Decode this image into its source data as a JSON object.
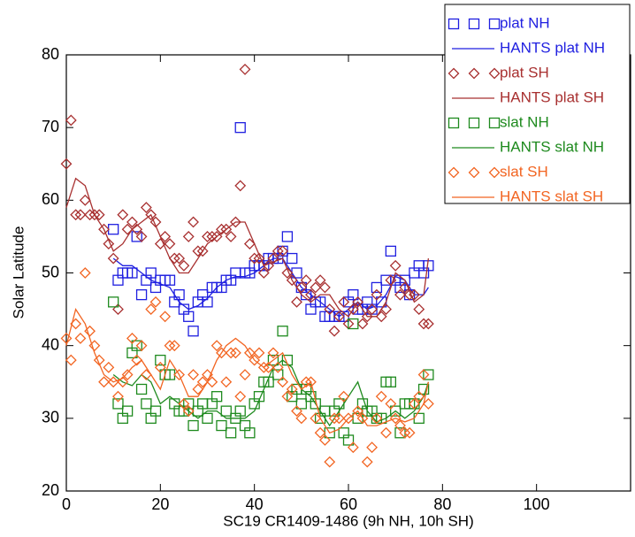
{
  "chart_data": {
    "type": "scatter",
    "xlabel": "SC19 CR1409-1486 (9h NH, 10h SH)",
    "ylabel": "Solar Latitude",
    "xlim": [
      0,
      120
    ],
    "xticks": [
      0,
      20,
      40,
      60,
      80,
      100
    ],
    "ylim": [
      20,
      80
    ],
    "yticks": [
      20,
      30,
      40,
      50,
      60,
      70,
      80
    ],
    "legend": "upper right",
    "series": [
      {
        "name": "plat NH",
        "color": "#1f1fe0",
        "marker": "square",
        "x": [
          10,
          11,
          12,
          13,
          14,
          15,
          16,
          17,
          18,
          19,
          20,
          21,
          22,
          23,
          24,
          25,
          26,
          27,
          28,
          29,
          30,
          31,
          32,
          33,
          34,
          35,
          36,
          37,
          38,
          39,
          40,
          41,
          42,
          43,
          44,
          45,
          46,
          47,
          48,
          49,
          50,
          51,
          52,
          53,
          54,
          55,
          56,
          57,
          58,
          59,
          60,
          61,
          62,
          63,
          64,
          65,
          66,
          67,
          68,
          69,
          70,
          71,
          72,
          73,
          74,
          75,
          76,
          77
        ],
        "values": [
          56,
          49,
          50,
          50,
          50,
          55,
          47,
          49,
          50,
          48,
          49,
          49,
          49,
          46,
          47,
          45,
          44,
          42,
          46,
          47,
          46,
          48,
          48,
          48,
          49,
          49,
          50,
          70,
          50,
          50,
          51,
          51,
          51,
          52,
          52,
          52,
          53,
          55,
          52,
          50,
          48,
          47,
          45,
          46,
          46,
          44,
          44,
          44,
          44,
          44,
          46,
          47,
          45,
          45,
          46,
          45,
          48,
          46,
          49,
          53,
          49,
          48,
          49,
          47,
          50,
          51,
          50,
          51
        ]
      },
      {
        "name": "HANTS plat NH",
        "color": "#1f1fe0",
        "marker": "line",
        "x": [
          10,
          12,
          14,
          16,
          18,
          20,
          22,
          24,
          26,
          28,
          30,
          32,
          34,
          36,
          38,
          40,
          42,
          44,
          46,
          48,
          50,
          52,
          54,
          56,
          58,
          60,
          62,
          64,
          66,
          68,
          70,
          72,
          74,
          76,
          77
        ],
        "values": [
          52,
          51,
          51,
          50,
          49,
          48.5,
          48,
          46,
          45,
          45.5,
          46.5,
          48,
          49,
          49.5,
          49.5,
          50,
          51,
          52,
          52,
          50,
          48,
          47,
          46,
          45,
          44,
          45,
          46,
          45,
          45.5,
          47,
          49.5,
          49,
          47,
          47,
          48
        ]
      },
      {
        "name": "plat SH",
        "color": "#a83030",
        "marker": "diamond",
        "x": [
          0,
          1,
          2,
          3,
          4,
          5,
          6,
          7,
          8,
          9,
          10,
          11,
          12,
          13,
          14,
          15,
          16,
          17,
          18,
          19,
          20,
          21,
          22,
          23,
          24,
          25,
          26,
          27,
          28,
          29,
          30,
          31,
          32,
          33,
          34,
          35,
          36,
          37,
          38,
          39,
          40,
          41,
          42,
          43,
          44,
          45,
          46,
          47,
          48,
          49,
          50,
          51,
          52,
          53,
          54,
          55,
          56,
          57,
          58,
          59,
          60,
          61,
          62,
          63,
          64,
          65,
          66,
          67,
          68,
          69,
          70,
          71,
          72,
          73,
          74,
          75,
          76,
          77
        ],
        "values": [
          65,
          71,
          58,
          58,
          60,
          58,
          58,
          58,
          56,
          54,
          52,
          45,
          58,
          56,
          57,
          56,
          55,
          59,
          58,
          57,
          54,
          55,
          54,
          52,
          52,
          51,
          55,
          57,
          53,
          53,
          55,
          55,
          55,
          56,
          56,
          55,
          57,
          62,
          78,
          54,
          52,
          52,
          50,
          51,
          52,
          53,
          53,
          50,
          49,
          46,
          48,
          49,
          47,
          48,
          49,
          48,
          45,
          42,
          44,
          46,
          43,
          45,
          46,
          43,
          44,
          45,
          47,
          44,
          45,
          49,
          51,
          47,
          48,
          47,
          47,
          45,
          43,
          43
        ]
      },
      {
        "name": "HANTS plat SH",
        "color": "#a83030",
        "marker": "line",
        "x": [
          0,
          2,
          4,
          6,
          8,
          10,
          12,
          14,
          16,
          18,
          20,
          22,
          24,
          26,
          28,
          30,
          32,
          34,
          36,
          38,
          40,
          42,
          44,
          46,
          48,
          50,
          52,
          54,
          56,
          58,
          60,
          62,
          64,
          66,
          68,
          70,
          72,
          74,
          76,
          77
        ],
        "values": [
          59,
          63,
          62,
          58,
          56,
          53,
          54,
          56,
          57,
          58,
          55,
          52,
          50,
          50,
          52,
          54,
          55,
          56,
          57,
          57,
          54,
          51,
          51.5,
          52,
          49,
          47,
          46,
          47,
          47,
          45,
          44,
          46,
          44,
          44,
          46,
          50,
          49,
          46,
          47,
          52
        ]
      },
      {
        "name": "slat NH",
        "color": "#1e8a1e",
        "marker": "square",
        "x": [
          10,
          11,
          12,
          13,
          14,
          15,
          16,
          17,
          18,
          19,
          20,
          21,
          22,
          23,
          24,
          25,
          26,
          27,
          28,
          29,
          30,
          31,
          32,
          33,
          34,
          35,
          36,
          37,
          38,
          39,
          40,
          41,
          42,
          43,
          44,
          45,
          46,
          47,
          48,
          49,
          50,
          51,
          52,
          53,
          54,
          55,
          56,
          57,
          58,
          59,
          60,
          61,
          62,
          63,
          64,
          65,
          66,
          67,
          68,
          69,
          70,
          71,
          72,
          73,
          74,
          75,
          76,
          77
        ],
        "values": [
          46,
          32,
          30,
          31,
          39,
          40,
          34,
          32,
          30,
          31,
          38,
          36,
          36,
          32,
          31,
          31,
          32,
          29,
          31,
          32,
          30,
          32,
          33,
          29,
          31,
          28,
          30,
          31,
          29,
          28,
          32,
          33,
          35,
          35,
          38,
          36,
          42,
          38,
          33,
          34,
          32,
          34,
          33,
          32,
          30,
          31,
          28,
          31,
          32,
          28,
          27,
          43,
          30,
          32,
          31,
          31,
          30,
          30,
          35,
          35,
          31,
          28,
          32,
          32,
          32,
          30,
          34,
          36
        ]
      },
      {
        "name": "HANTS slat NH",
        "color": "#1e8a1e",
        "marker": "line",
        "x": [
          10,
          12,
          14,
          16,
          18,
          20,
          22,
          24,
          26,
          28,
          30,
          32,
          34,
          36,
          38,
          40,
          42,
          44,
          46,
          48,
          50,
          52,
          54,
          56,
          58,
          60,
          62,
          64,
          66,
          68,
          70,
          72,
          74,
          76,
          77
        ],
        "values": [
          36,
          35,
          34.5,
          36,
          35,
          32,
          33,
          32,
          31,
          30,
          31,
          31,
          30,
          30,
          30,
          31,
          34,
          37,
          38,
          37,
          34,
          33,
          31,
          29,
          31,
          33,
          35,
          31,
          29.5,
          30,
          31,
          30,
          31,
          33,
          35
        ]
      },
      {
        "name": "slat SH",
        "color": "#f26522",
        "marker": "diamond",
        "x": [
          0,
          1,
          2,
          3,
          4,
          5,
          6,
          7,
          8,
          9,
          10,
          11,
          12,
          13,
          14,
          15,
          16,
          17,
          18,
          19,
          20,
          21,
          22,
          23,
          24,
          25,
          26,
          27,
          28,
          29,
          30,
          31,
          32,
          33,
          34,
          35,
          36,
          37,
          38,
          39,
          40,
          41,
          42,
          43,
          44,
          45,
          46,
          47,
          48,
          49,
          50,
          51,
          52,
          53,
          54,
          55,
          56,
          57,
          58,
          59,
          60,
          61,
          62,
          63,
          64,
          65,
          66,
          67,
          68,
          69,
          70,
          71,
          72,
          73,
          74,
          75,
          76,
          77
        ],
        "values": [
          41,
          38,
          43,
          41,
          50,
          42,
          40,
          38,
          35,
          37,
          35,
          33,
          35,
          36,
          41,
          38,
          40,
          36,
          45,
          46,
          37,
          44,
          40,
          40,
          36,
          32,
          31,
          36,
          34,
          35,
          36,
          35,
          40,
          39,
          35,
          39,
          39,
          33,
          36,
          39,
          38,
          39,
          37,
          37,
          39,
          37,
          35,
          33,
          34,
          31,
          30,
          35,
          35,
          30,
          28,
          27,
          24,
          30,
          30,
          33,
          30,
          26,
          31,
          30,
          24,
          26,
          30,
          33,
          28,
          32,
          30,
          29,
          28,
          28,
          32,
          33,
          36,
          32
        ]
      },
      {
        "name": "HANTS slat SH",
        "color": "#f26522",
        "marker": "line",
        "x": [
          0,
          2,
          4,
          6,
          8,
          10,
          12,
          14,
          16,
          18,
          20,
          22,
          24,
          26,
          28,
          30,
          32,
          34,
          36,
          38,
          40,
          42,
          44,
          46,
          48,
          50,
          52,
          54,
          56,
          58,
          60,
          62,
          64,
          66,
          68,
          70,
          72,
          74,
          76,
          77
        ],
        "values": [
          40,
          45,
          43,
          39,
          36,
          35,
          35.5,
          37,
          38,
          36,
          34,
          38,
          36,
          33,
          33,
          35,
          38,
          40,
          41,
          40,
          38,
          37,
          38,
          39,
          36,
          34,
          35,
          30,
          28,
          28.5,
          30,
          31,
          29,
          29,
          29.5,
          30,
          29.5,
          30,
          32,
          35
        ]
      }
    ]
  }
}
